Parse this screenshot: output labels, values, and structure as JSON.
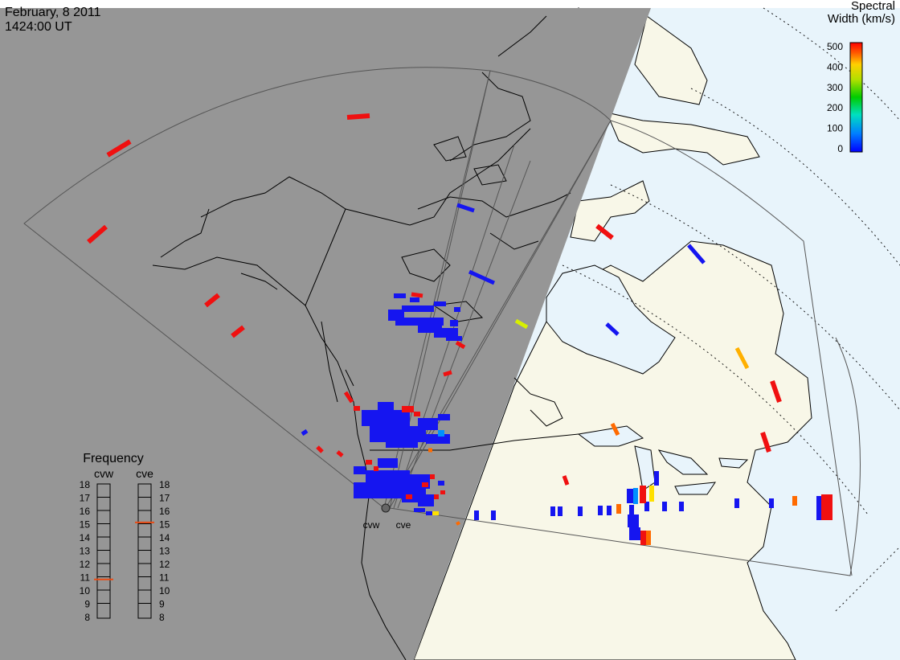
{
  "header": {
    "date": "February, 8 2011",
    "time": "1424:00 UT"
  },
  "colorbar": {
    "title_line1": "Spectral",
    "title_line2": "Width (km/s)",
    "ticks": [
      "500",
      "400",
      "300",
      "200",
      "100",
      "0"
    ],
    "min": 0,
    "max": 500
  },
  "frequency_panel": {
    "title": "Frequency",
    "columns": [
      {
        "name": "cvw",
        "selected_mhz": 10.8
      },
      {
        "name": "cve",
        "selected_mhz": 15.1
      }
    ],
    "ticks": [
      "18",
      "17",
      "16",
      "15",
      "14",
      "13",
      "12",
      "11",
      "10",
      "9",
      "8"
    ],
    "min": 8,
    "max": 18
  },
  "radar_sites": [
    {
      "name": "cvw"
    },
    {
      "name": "cve"
    }
  ],
  "colors": {
    "night_shade": "#969696",
    "land_day": "#f8f7e8",
    "ocean_day": "#e8f4fb",
    "coast": "#000000",
    "fov_line": "#555555",
    "frequency_marker": "#e84b14"
  },
  "map_data": {
    "projection": "polar stereographic, north pole",
    "day_night_terminator": true,
    "coastlines": true,
    "echo_color_scale": "spectral width"
  }
}
